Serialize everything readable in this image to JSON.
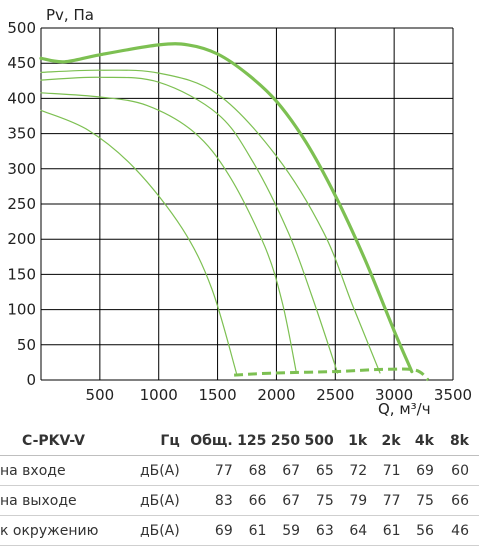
{
  "chart_data": {
    "type": "line",
    "ylabel": "Pv, Па",
    "xlabel": "Q, м³/ч",
    "xlim": [
      0,
      3500
    ],
    "ylim": [
      0,
      500
    ],
    "x_ticks": [
      "500",
      "1000",
      "1500",
      "2000",
      "2500",
      "3000",
      "3500"
    ],
    "y_ticks": [
      "0",
      "50",
      "100",
      "150",
      "200",
      "250",
      "300",
      "350",
      "400",
      "450",
      "500"
    ],
    "grid": true,
    "colors": {
      "main": "#7dc052",
      "thin": "#7dc052",
      "grid": "#000000",
      "limit": "#7dc052"
    },
    "series": [
      {
        "style": "bold",
        "points": [
          [
            0,
            457
          ],
          [
            200,
            452
          ],
          [
            500,
            462
          ],
          [
            1000,
            476
          ],
          [
            1250,
            476
          ],
          [
            1500,
            463
          ],
          [
            1750,
            435
          ],
          [
            2000,
            396
          ],
          [
            2250,
            338
          ],
          [
            2500,
            262
          ],
          [
            2750,
            172
          ],
          [
            3000,
            70
          ],
          [
            3150,
            12
          ]
        ]
      },
      {
        "style": "thin",
        "points": [
          [
            0,
            437
          ],
          [
            500,
            440
          ],
          [
            1000,
            436
          ],
          [
            1500,
            406
          ],
          [
            2000,
            318
          ],
          [
            2400,
            210
          ],
          [
            2650,
            105
          ],
          [
            2880,
            10
          ]
        ]
      },
      {
        "style": "thin",
        "points": [
          [
            0,
            426
          ],
          [
            500,
            430
          ],
          [
            1000,
            423
          ],
          [
            1500,
            378
          ],
          [
            1800,
            310
          ],
          [
            2100,
            210
          ],
          [
            2300,
            120
          ],
          [
            2520,
            10
          ]
        ]
      },
      {
        "style": "thin",
        "points": [
          [
            0,
            408
          ],
          [
            500,
            402
          ],
          [
            900,
            390
          ],
          [
            1300,
            352
          ],
          [
            1600,
            290
          ],
          [
            1900,
            190
          ],
          [
            2050,
            110
          ],
          [
            2170,
            10
          ]
        ]
      },
      {
        "style": "thin",
        "points": [
          [
            0,
            383
          ],
          [
            400,
            355
          ],
          [
            800,
            300
          ],
          [
            1200,
            215
          ],
          [
            1450,
            130
          ],
          [
            1660,
            10
          ]
        ]
      }
    ],
    "limit_line": {
      "style": "dashed",
      "points": [
        [
          1640,
          7
        ],
        [
          2000,
          10
        ],
        [
          2500,
          12
        ],
        [
          2900,
          15
        ],
        [
          3180,
          14
        ],
        [
          3290,
          0
        ]
      ]
    }
  },
  "table": {
    "header": [
      "C-PKV-V",
      "Гц",
      "Общ.",
      "125",
      "250",
      "500",
      "1k",
      "2k",
      "4k",
      "8k"
    ],
    "rows": [
      [
        "на входе",
        "дБ(A)",
        "77",
        "68",
        "67",
        "65",
        "72",
        "71",
        "69",
        "60"
      ],
      [
        "на выходе",
        "дБ(A)",
        "83",
        "66",
        "67",
        "75",
        "79",
        "77",
        "75",
        "66"
      ],
      [
        "к окружению",
        "дБ(A)",
        "69",
        "61",
        "59",
        "63",
        "64",
        "61",
        "56",
        "46"
      ]
    ]
  }
}
